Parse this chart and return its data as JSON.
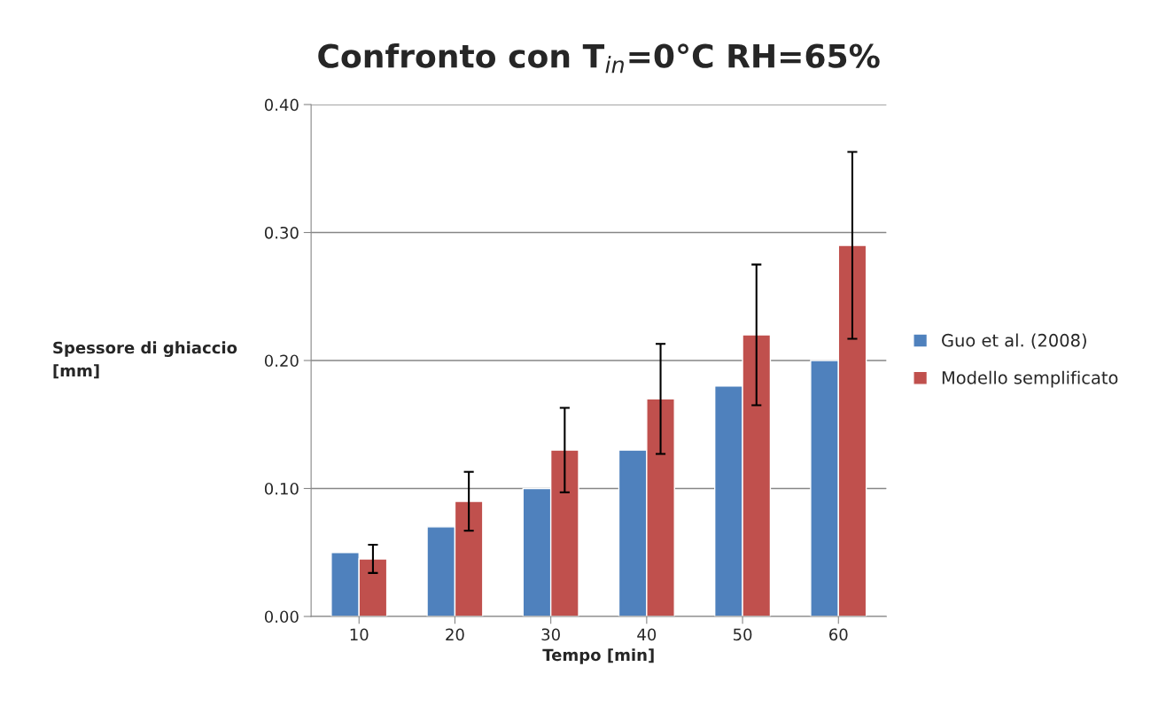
{
  "chart_data": {
    "type": "bar",
    "title": "Confronto con T$_{in}$=0°C RH=65%",
    "xlabel": "Tempo [min]",
    "ylabel": "Spessore di ghiaccio\n[mm]",
    "categories": [
      "10",
      "20",
      "30",
      "40",
      "50",
      "60"
    ],
    "series": [
      {
        "name": "Guo et al. (2008)",
        "color": "#4f81bd",
        "values": [
          0.05,
          0.07,
          0.1,
          0.13,
          0.18,
          0.2
        ]
      },
      {
        "name": "Modello semplificato",
        "color": "#c0504d",
        "values": [
          0.045,
          0.09,
          0.13,
          0.17,
          0.22,
          0.29
        ],
        "errors": [
          0.011,
          0.023,
          0.033,
          0.043,
          0.055,
          0.073
        ]
      }
    ],
    "ylim": [
      0,
      0.4
    ],
    "yticks": [
      {
        "value": 0,
        "label": "0.00"
      },
      {
        "value": 0.1,
        "label": "0.10"
      },
      {
        "value": 0.2,
        "label": "0.20"
      },
      {
        "value": 0.3,
        "label": "0.30"
      },
      {
        "value": 0.4,
        "label": "0.40"
      }
    ],
    "grid": "y",
    "legend": "right"
  }
}
